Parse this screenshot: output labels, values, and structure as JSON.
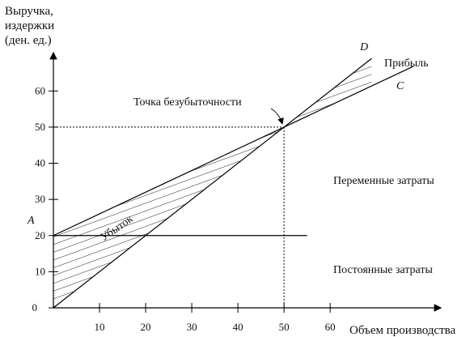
{
  "chart_data": {
    "type": "line",
    "y_label": [
      "Выручка,",
      "издержки",
      "(ден. ед.)"
    ],
    "x_label": "Объем производства",
    "xlim": [
      0,
      84
    ],
    "ylim": [
      0,
      70.6
    ],
    "xticks": [
      10,
      20,
      30,
      40,
      50,
      60
    ],
    "yticks": [
      0,
      10,
      20,
      30,
      40,
      50,
      60
    ],
    "series": [
      {
        "color": "#000000",
        "x": [
          0,
          69
        ],
        "values": [
          0,
          69
        ]
      },
      {
        "color": "#000000",
        "x": [
          0,
          78
        ],
        "values": [
          20,
          66.8
        ]
      },
      {
        "color": "#000000",
        "x": [
          0,
          55
        ],
        "values": [
          20,
          20
        ]
      }
    ],
    "break_even": {
      "x": 50,
      "y": 50
    },
    "annotations": [
      "Точка безубыточности",
      "Прибыль",
      "D",
      "C",
      "A",
      "Убыток",
      "Переменные затраты",
      "Постоянные затраты"
    ]
  }
}
